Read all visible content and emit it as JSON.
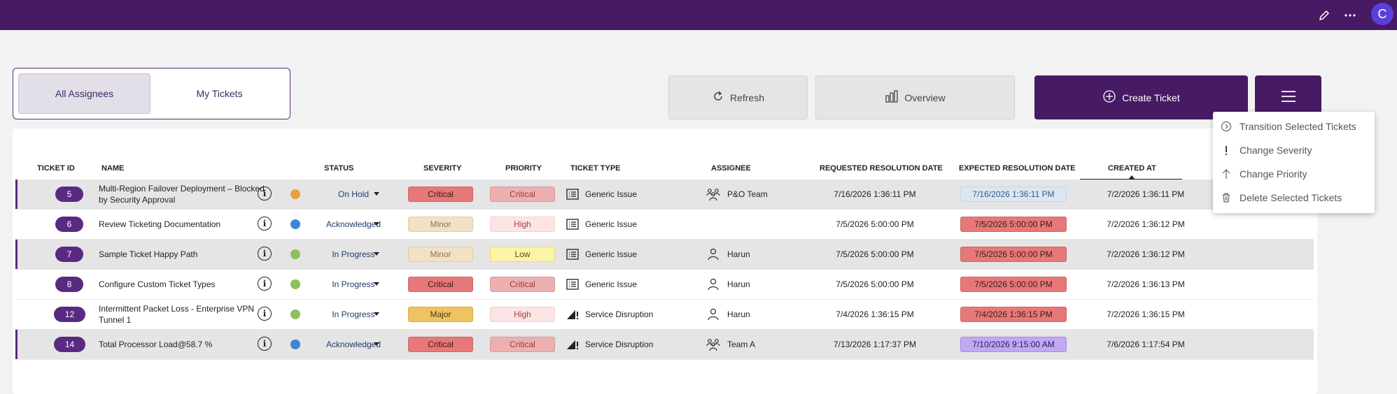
{
  "topbar": {
    "user_initial": "C"
  },
  "assignee_toggle": {
    "all": "All Assignees",
    "mine": "My Tickets"
  },
  "actions": {
    "refresh": "Refresh",
    "overview": "Overview",
    "create": "Create Ticket"
  },
  "menu": {
    "items": [
      {
        "label": "Transition Selected Tickets",
        "icon": "chevron-circle-icon"
      },
      {
        "label": "Change Severity",
        "icon": "exclamation-icon"
      },
      {
        "label": "Change Priority",
        "icon": "arrow-up-icon"
      },
      {
        "label": "Delete Selected Tickets",
        "icon": "trash-icon"
      }
    ]
  },
  "table": {
    "columns": {
      "id": "TICKET ID",
      "name": "NAME",
      "status": "STATUS",
      "severity": "SEVERITY",
      "priority": "PRIORITY",
      "type": "TICKET TYPE",
      "assignee": "ASSIGNEE",
      "requested": "REQUESTED RESOLUTION DATE",
      "expected": "EXPECTED RESOLUTION DATE",
      "created": "CREATED AT"
    },
    "rows": [
      {
        "id": "5",
        "name": "Multi-Region Failover Deployment – Blocked by Security Approval",
        "status": "On Hold",
        "status_color": "#e8a03c",
        "severity": "Critical",
        "priority": "Critical",
        "type": "Generic Issue",
        "assignee": "P&O Team",
        "requested": "7/16/2026 1:36:11 PM",
        "expected": "7/16/2026 1:36:11 PM",
        "created": "7/2/2026 1:36:11 PM"
      },
      {
        "id": "6",
        "name": "Review Ticketing Documentation",
        "status": "Acknowledged",
        "status_color": "#3d86d6",
        "severity": "Minor",
        "priority": "High",
        "type": "Generic Issue",
        "assignee": "",
        "requested": "7/5/2026 5:00:00 PM",
        "expected": "7/5/2026 5:00:00 PM",
        "created": "7/2/2026 1:36:12 PM"
      },
      {
        "id": "7",
        "name": "Sample Ticket Happy Path",
        "status": "In Progress",
        "status_color": "#8fbf5a",
        "severity": "Minor",
        "priority": "Low",
        "type": "Generic Issue",
        "assignee": "Harun",
        "requested": "7/5/2026 5:00:00 PM",
        "expected": "7/5/2026 5:00:00 PM",
        "created": "7/2/2026 1:36:12 PM"
      },
      {
        "id": "8",
        "name": "Configure Custom Ticket Types",
        "status": "In Progress",
        "status_color": "#8fbf5a",
        "severity": "Critical",
        "priority": "Critical",
        "type": "Generic Issue",
        "assignee": "Harun",
        "requested": "7/5/2026 5:00:00 PM",
        "expected": "7/5/2026 5:00:00 PM",
        "created": "7/2/2026 1:36:13 PM"
      },
      {
        "id": "12",
        "name": "Intermittent Packet Loss - Enterprise VPN Tunnel 1",
        "status": "In Progress",
        "status_color": "#8fbf5a",
        "severity": "Major",
        "priority": "High",
        "type": "Service Disruption",
        "assignee": "Harun",
        "requested": "7/4/2026 1:36:15 PM",
        "expected": "7/4/2026 1:36:15 PM",
        "created": "7/2/2026 1:36:15 PM"
      },
      {
        "id": "14",
        "name": "Total Processor Load@58.7 %",
        "status": "Acknowledged",
        "status_color": "#3d86d6",
        "severity": "Critical",
        "priority": "Critical",
        "type": "Service Disruption",
        "assignee": "Team A",
        "requested": "7/13/2026 1:17:37 PM",
        "expected": "7/10/2026 9:15:00 AM",
        "created": "7/6/2026 1:17:54 PM"
      }
    ]
  }
}
